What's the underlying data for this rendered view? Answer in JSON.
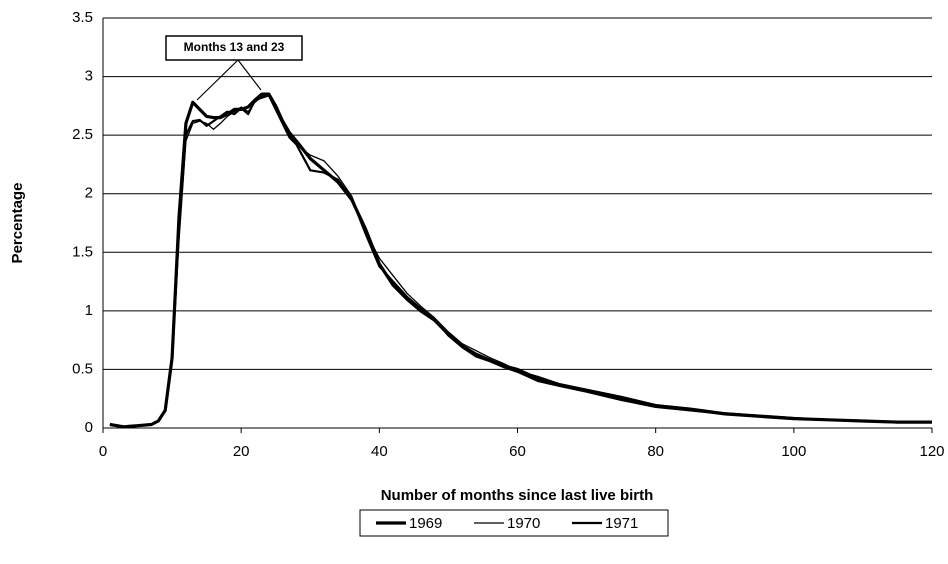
{
  "chart_data": {
    "type": "line",
    "x_label": "Number of months since last live birth",
    "y_label": "Percentage",
    "annotation": "Months 13 and 23",
    "x": [
      1,
      3,
      5,
      7,
      8,
      9,
      10,
      11,
      12,
      13,
      14,
      15,
      16,
      17,
      18,
      19,
      20,
      21,
      22,
      23,
      24,
      25,
      26,
      27,
      28,
      30,
      32,
      34,
      36,
      38,
      40,
      42,
      44,
      46,
      48,
      50,
      52,
      54,
      56,
      58,
      60,
      63,
      66,
      70,
      75,
      80,
      85,
      90,
      95,
      100,
      105,
      110,
      115,
      120
    ],
    "series": [
      {
        "name": "1969",
        "color": "#000000",
        "values": [
          0.03,
          0.01,
          0.02,
          0.03,
          0.06,
          0.15,
          0.6,
          1.8,
          2.6,
          2.78,
          2.72,
          2.66,
          2.65,
          2.65,
          2.68,
          2.72,
          2.72,
          2.74,
          2.8,
          2.85,
          2.85,
          2.75,
          2.62,
          2.52,
          2.45,
          2.3,
          2.2,
          2.1,
          1.95,
          1.7,
          1.4,
          1.22,
          1.1,
          1.0,
          0.92,
          0.8,
          0.7,
          0.63,
          0.58,
          0.53,
          0.5,
          0.42,
          0.37,
          0.32,
          0.26,
          0.19,
          0.16,
          0.12,
          0.1,
          0.08,
          0.07,
          0.06,
          0.05,
          0.05
        ]
      },
      {
        "name": "1970",
        "color": "#000000",
        "values": [
          0.03,
          0.01,
          0.02,
          0.03,
          0.06,
          0.14,
          0.55,
          1.6,
          2.45,
          2.6,
          2.62,
          2.6,
          2.55,
          2.6,
          2.66,
          2.7,
          2.74,
          2.7,
          2.78,
          2.83,
          2.86,
          2.74,
          2.6,
          2.5,
          2.42,
          2.33,
          2.28,
          2.15,
          1.98,
          1.68,
          1.45,
          1.3,
          1.15,
          1.04,
          0.94,
          0.82,
          0.72,
          0.66,
          0.6,
          0.55,
          0.49,
          0.44,
          0.38,
          0.33,
          0.27,
          0.2,
          0.17,
          0.13,
          0.11,
          0.09,
          0.07,
          0.06,
          0.05,
          0.05
        ]
      },
      {
        "name": "1971",
        "color": "#000000",
        "values": [
          0.03,
          0.01,
          0.02,
          0.03,
          0.06,
          0.15,
          0.58,
          1.7,
          2.5,
          2.62,
          2.63,
          2.58,
          2.62,
          2.66,
          2.7,
          2.68,
          2.73,
          2.68,
          2.8,
          2.82,
          2.84,
          2.72,
          2.6,
          2.48,
          2.42,
          2.2,
          2.18,
          2.12,
          1.96,
          1.66,
          1.38,
          1.25,
          1.12,
          1.02,
          0.93,
          0.79,
          0.69,
          0.61,
          0.57,
          0.52,
          0.48,
          0.4,
          0.36,
          0.31,
          0.24,
          0.18,
          0.15,
          0.12,
          0.1,
          0.08,
          0.07,
          0.06,
          0.05,
          0.05
        ]
      }
    ],
    "xlim": [
      0,
      120
    ],
    "xticks": [
      0,
      20,
      40,
      60,
      80,
      100,
      120
    ],
    "ylim": [
      0,
      3.5
    ],
    "yticks": [
      0,
      0.5,
      1,
      1.5,
      2,
      2.5,
      3,
      3.5
    ],
    "grid": true
  }
}
